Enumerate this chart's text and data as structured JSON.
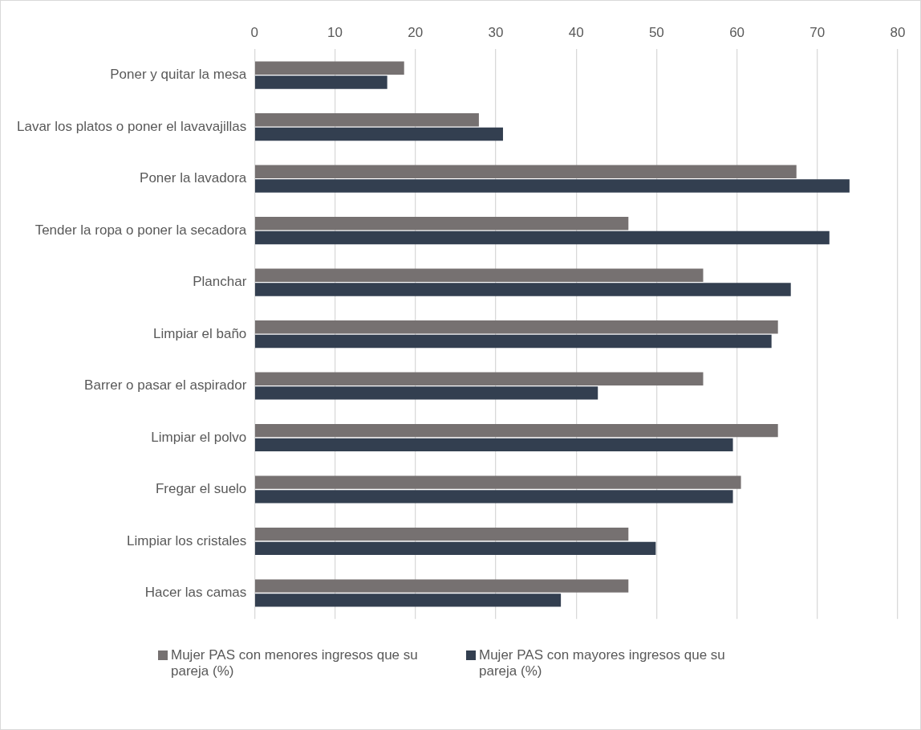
{
  "chart_data": {
    "type": "bar",
    "orientation": "horizontal",
    "categories": [
      "Poner y quitar la mesa",
      "Lavar los platos o poner el lavavajillas",
      "Poner la lavadora",
      "Tender la ropa o poner la secadora",
      "Planchar",
      "Limpiar el baño",
      "Barrer o pasar el aspirador",
      "Limpiar el polvo",
      "Fregar el suelo",
      "Limpiar los cristales",
      "Hacer las camas"
    ],
    "series": [
      {
        "name": "Mujer PAS con menores ingresos que su pareja (%)",
        "color": "#767171",
        "values": [
          18.6,
          27.9,
          67.4,
          46.5,
          55.8,
          65.1,
          55.8,
          65.1,
          60.5,
          46.5,
          46.5
        ]
      },
      {
        "name": "Mujer PAS con mayores ingresos que su pareja (%)",
        "color": "#333f50",
        "values": [
          16.5,
          30.9,
          74.0,
          71.5,
          66.7,
          64.3,
          42.7,
          59.5,
          59.5,
          49.9,
          38.1
        ]
      }
    ],
    "xlim": [
      0,
      80
    ],
    "xticks": [
      0,
      10,
      20,
      30,
      40,
      50,
      60,
      70,
      80
    ],
    "grid": "x",
    "legend": "bottom"
  }
}
